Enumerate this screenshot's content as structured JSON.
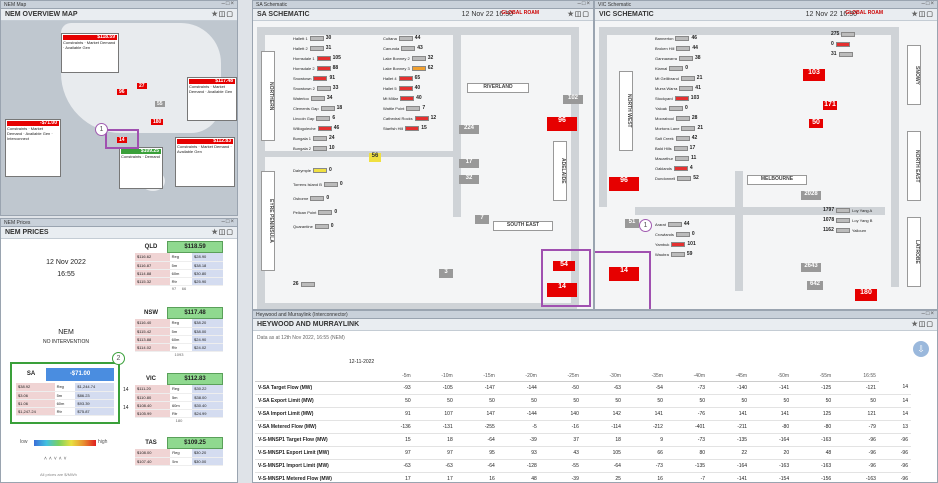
{
  "nem_map": {
    "tab": "NEM Map",
    "title": "NEM OVERVIEW MAP",
    "qld_price": "$118.59",
    "nsw_price": "$117.48",
    "sa_price": "-$71.00",
    "vic_price": "$112.83",
    "tas_price": "$109.25",
    "link_flows": [
      "96",
      "27",
      "14",
      "55",
      "180"
    ],
    "marker": "1"
  },
  "nem_prices": {
    "tab": "NEM Prices",
    "title": "NEM PRICES",
    "date": "12 Nov 2022",
    "time": "16:55",
    "status_title": "NEM",
    "status_sub": "NO INTERVENTION",
    "marker": "2",
    "legend_low": "low",
    "legend_high": "high",
    "footer": "All prices are $/MWh",
    "regions": [
      {
        "name": "QLD",
        "price": "$118.59",
        "rows": [
          [
            "$116.62",
            "Reg",
            "$28.90"
          ],
          [
            "$116.87",
            "5m",
            "$38.18"
          ],
          [
            "$114.88",
            "60m",
            "$30.80"
          ],
          [
            "$115.32",
            "Rtr",
            "$25.90"
          ]
        ],
        "foot_l": "97",
        "foot_r": "66"
      },
      {
        "name": "NSW",
        "price": "$117.48",
        "rows": [
          [
            "$116.40",
            "Reg",
            "$38.20"
          ],
          [
            "$115.42",
            "5m",
            "$38.00"
          ],
          [
            "$113.88",
            "60m",
            "$24.90"
          ],
          [
            "$114.02",
            "Rtr",
            "$24.02"
          ]
        ],
        "foot_l": "",
        "foot_r": "1093"
      },
      {
        "name": "VIC",
        "price": "$112.83",
        "rows": [
          [
            "$111.20",
            "Reg",
            "$30.22"
          ],
          [
            "$110.80",
            "5m",
            "$38.00"
          ],
          [
            "$108.40",
            "60m",
            "$30.40"
          ],
          [
            "$105.99",
            "Rtr",
            "$24.99"
          ]
        ],
        "foot_l": "",
        "foot_r": "180"
      },
      {
        "name": "TAS",
        "price": "$109.25",
        "rows": [
          [
            "$108.00",
            "Reg",
            "$30.20"
          ],
          [
            "$107.40",
            "5m",
            "$30.00"
          ]
        ],
        "foot_l": "",
        "foot_r": ""
      }
    ],
    "sa": {
      "name": "SA",
      "price": "-$71.00",
      "rows": [
        [
          "$38.92",
          "Reg",
          "$1,244.74"
        ],
        [
          "$3.06",
          "5m",
          "$86.23"
        ],
        [
          "$1.06",
          "60m",
          "$93.39"
        ],
        [
          "$1,247.24",
          "Rtr",
          "$75.87"
        ]
      ]
    },
    "side_labels": [
      "14",
      "14"
    ]
  },
  "sa_schematic": {
    "tab": "SA Schematic",
    "title": "SA SCHEMATIC",
    "date": "12 Nov 22 16:50",
    "logo": "GLOBAL ROAM",
    "region_labels": [
      "RIVERLAND",
      "SOUTH EAST",
      "NORTHERN",
      "EYRE PENINSULA",
      "ADELAIDE"
    ],
    "flows": {
      "riverland": "96",
      "murraylink": "54",
      "heywood": "14",
      "import1": "224",
      "import2": "17",
      "import3": "32",
      "import4": "3",
      "import5": "7",
      "s1": "102",
      "s2": "26",
      "s3": "56"
    },
    "gens_left": [
      [
        "Hallett 1",
        "30"
      ],
      [
        "Hallett 2",
        "31"
      ],
      [
        "Hornsdale 1",
        "105"
      ],
      [
        "Hornsdale 2",
        "88"
      ],
      [
        "Snowtown",
        "91"
      ],
      [
        "Snowtown 2",
        "33"
      ],
      [
        "Waterloo",
        "34"
      ],
      [
        "Clements Gap",
        "18"
      ],
      [
        "Lincoln Gap",
        "6"
      ],
      [
        "Willogoleche",
        "46"
      ],
      [
        "Bungala 1",
        "24"
      ],
      [
        "Bungala 2",
        "10"
      ]
    ],
    "gens_mid": [
      [
        "Cultana",
        "44"
      ],
      [
        "Canunda",
        "43"
      ],
      [
        "Lake Bonney 2",
        "32"
      ],
      [
        "Lake Bonney 3",
        "62"
      ],
      [
        "Hallet 4",
        "65"
      ],
      [
        "Hallet 5",
        "40"
      ],
      [
        "Mt Millar",
        "40"
      ],
      [
        "Wattle Point",
        "7"
      ],
      [
        "Cathedral Rocks",
        "12"
      ],
      [
        "Starfish Hill",
        "15"
      ]
    ],
    "loads": [
      [
        "Dalrymple",
        "0"
      ],
      [
        "Torrens Island B",
        "0"
      ],
      [
        "Osborne",
        "0"
      ],
      [
        "Pelican Point",
        "0"
      ],
      [
        "Quarantine",
        "0"
      ]
    ],
    "marker": "1"
  },
  "vic_schematic": {
    "tab": "VIC Schematic",
    "title": "VIC SCHEMATIC",
    "date": "12 Nov 22 16:50",
    "logo": "GLOBAL ROAM",
    "region_labels": [
      "NORTH WEST",
      "MELBOURNE",
      "SNOWY",
      "NORTH EAST",
      "LATROBE"
    ],
    "flows": {
      "vsa": "96",
      "heywood": "14",
      "vic_nsw": "103",
      "murraylink": "171",
      "n1": "50",
      "n2": "2028",
      "n3": "2643",
      "n4": "642",
      "n5": "51",
      "n6": "180",
      "top1": "275",
      "top2": "0",
      "top3": "31"
    },
    "gens": [
      [
        "Bannerton",
        "46"
      ],
      [
        "Broken Hill",
        "44"
      ],
      [
        "Gannawarra",
        "38"
      ],
      [
        "Kiamal",
        "0"
      ],
      [
        "Mt Gellibrand",
        "21"
      ],
      [
        "Murra Warra",
        "41"
      ],
      [
        "Stockyard",
        "103"
      ],
      [
        "Yaloak",
        "0"
      ],
      [
        "Moorabool",
        "28"
      ],
      [
        "Mortons Lane",
        "21"
      ],
      [
        "Salt Creek",
        "42"
      ],
      [
        "Bald Hills",
        "17"
      ],
      [
        "Macarthur",
        "11"
      ],
      [
        "Oaklands",
        "4"
      ],
      [
        "Dundonnell",
        "52"
      ],
      [
        "Ararat",
        "44"
      ],
      [
        "Crowlands",
        "0"
      ],
      [
        "Yambuk",
        "101"
      ],
      [
        "Waubra",
        "59"
      ],
      [
        "Loy Yang A",
        "1797"
      ],
      [
        "Loy Yang B",
        "1078"
      ],
      [
        "Yallourn",
        "1162"
      ]
    ],
    "marker": "1"
  },
  "heywood": {
    "tab": "Heywood and Murraylink (Interconnector)",
    "title": "HEYWOOD AND MURRAYLINK",
    "info": "Data as at 12th Nov 2022, 16:55 (NEM)",
    "date": "12-11-2022",
    "columns": [
      "",
      "-5m",
      "-10m",
      "-15m",
      "-20m",
      "-25m",
      "-30m",
      "-35m",
      "-40m",
      "-45m",
      "-50m",
      "-55m",
      "16:55"
    ],
    "rows": [
      {
        "label": "V-SA Target Flow (MW)",
        "values": [
          "-93",
          "-105",
          "-147",
          "-144",
          "-50",
          "-63",
          "-54",
          "-73",
          "-140",
          "-141",
          "-125",
          "-121",
          "14"
        ]
      },
      {
        "label": "V-SA Export Limit (MW)",
        "values": [
          "50",
          "50",
          "50",
          "50",
          "50",
          "50",
          "50",
          "50",
          "50",
          "50",
          "50",
          "50",
          "14"
        ]
      },
      {
        "label": "V-SA Import Limit (MW)",
        "values": [
          "91",
          "107",
          "147",
          "-144",
          "140",
          "142",
          "141",
          "-76",
          "141",
          "141",
          "125",
          "121",
          "14"
        ]
      },
      {
        "label": "V-SA Metered Flow (MW)",
        "values": [
          "-136",
          "-131",
          "-255",
          "-5",
          "-16",
          "-114",
          "-212",
          "-401",
          "-211",
          "-80",
          "-80",
          "-79",
          "13"
        ]
      },
      {
        "label": "V-S-MNSP1 Target Flow (MW)",
        "values": [
          "15",
          "18",
          "-64",
          "-39",
          "37",
          "18",
          "9",
          "-73",
          "-135",
          "-164",
          "-163",
          "-96",
          "-96"
        ]
      },
      {
        "label": "V-S-MNSP1 Export Limit (MW)",
        "values": [
          "97",
          "97",
          "95",
          "93",
          "43",
          "105",
          "66",
          "80",
          "22",
          "20",
          "48",
          "-96",
          "-96"
        ]
      },
      {
        "label": "V-S-MNSP1 Import Limit (MW)",
        "values": [
          "-63",
          "-63",
          "-64",
          "-128",
          "-55",
          "-64",
          "-73",
          "-135",
          "-164",
          "-163",
          "-163",
          "-96",
          "-96"
        ]
      },
      {
        "label": "V-S-MNSP1 Metered Flow (MW)",
        "values": [
          "17",
          "17",
          "16",
          "48",
          "-39",
          "25",
          "16",
          "-7",
          "-141",
          "-154",
          "-156",
          "-163",
          "-96"
        ]
      }
    ]
  }
}
